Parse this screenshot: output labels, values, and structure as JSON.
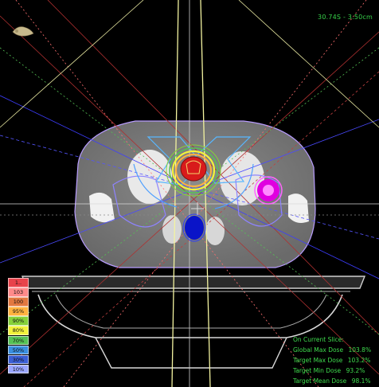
{
  "viewer": {
    "coordinate_readout": "30.74S - 3.50cm"
  },
  "icons": {
    "orientation": "patient-orientation-icon"
  },
  "isodose_legend": [
    {
      "label": "1..",
      "color": "#e8434b"
    },
    {
      "label": "103",
      "color": "#ff8a8a"
    },
    {
      "label": "100",
      "color": "#e27840"
    },
    {
      "label": "95%",
      "color": "#ffb23f"
    },
    {
      "label": "90%",
      "color": "#86d13a"
    },
    {
      "label": "80%",
      "color": "#f2f23c"
    },
    {
      "label": "70%",
      "color": "#56c256"
    },
    {
      "label": "50%",
      "color": "#3a8fe0"
    },
    {
      "label": "30%",
      "color": "#3b5fd6"
    },
    {
      "label": "10%",
      "color": "#9aa6ff"
    }
  ],
  "dose_stats": {
    "heading": "On Current Slice:",
    "rows": [
      {
        "label": "Global Max Dose",
        "value": "103.8%"
      },
      {
        "label": "Target Max Dose",
        "value": "103.2%"
      },
      {
        "label": "Target Min Dose",
        "value": "93.2%"
      },
      {
        "label": "Target Mean Dose",
        "value": "98.1%"
      }
    ]
  },
  "colors": {
    "text_green": "#3fdc4e",
    "beam_yellow": "#f3f3a0",
    "ptv_red": "#d81b1b",
    "bladder_magenta": "#e000e0",
    "rectum_blue": "#0a14c8"
  }
}
